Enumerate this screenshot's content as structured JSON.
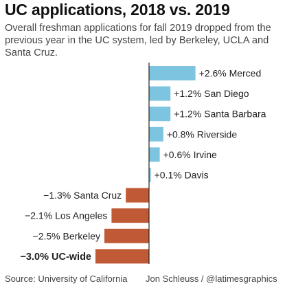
{
  "title": "UC applications, 2018 vs. 2019",
  "subtitle": "Overall freshman applications for fall 2019 dropped from the previous year in the UC system, led by Berkeley, UCLA and Santa Cruz.",
  "source": "Source: University of California",
  "credit": "Jon Schleuss / @latimesgraphics",
  "colors": {
    "positive": "#7cc4df",
    "negative": "#c05a36",
    "axis": "#222222",
    "text": "#222222"
  },
  "chart_data": {
    "type": "bar",
    "orientation": "horizontal",
    "unit": "percent change",
    "categories": [
      "Merced",
      "San Diego",
      "Santa Barbara",
      "Riverside",
      "Irvine",
      "Davis",
      "Santa Cruz",
      "Los Angeles",
      "Berkeley",
      "UC-wide"
    ],
    "values": [
      2.6,
      1.2,
      1.2,
      0.8,
      0.6,
      0.1,
      -1.3,
      -2.1,
      -2.5,
      -3.0
    ],
    "labels": [
      "+2.6% Merced",
      "+1.2% San Diego",
      "+1.2% Santa Barbara",
      "+0.8% Riverside",
      "+0.6% Irvine",
      "+0.1% Davis",
      "−1.3% Santa Cruz",
      "−2.1% Los Angeles",
      "−2.5% Berkeley",
      "−3.0% UC-wide"
    ],
    "bold": [
      false,
      false,
      false,
      false,
      false,
      false,
      false,
      false,
      false,
      true
    ],
    "xlim": [
      -3.0,
      2.6
    ],
    "grid": false,
    "legend": "none"
  }
}
